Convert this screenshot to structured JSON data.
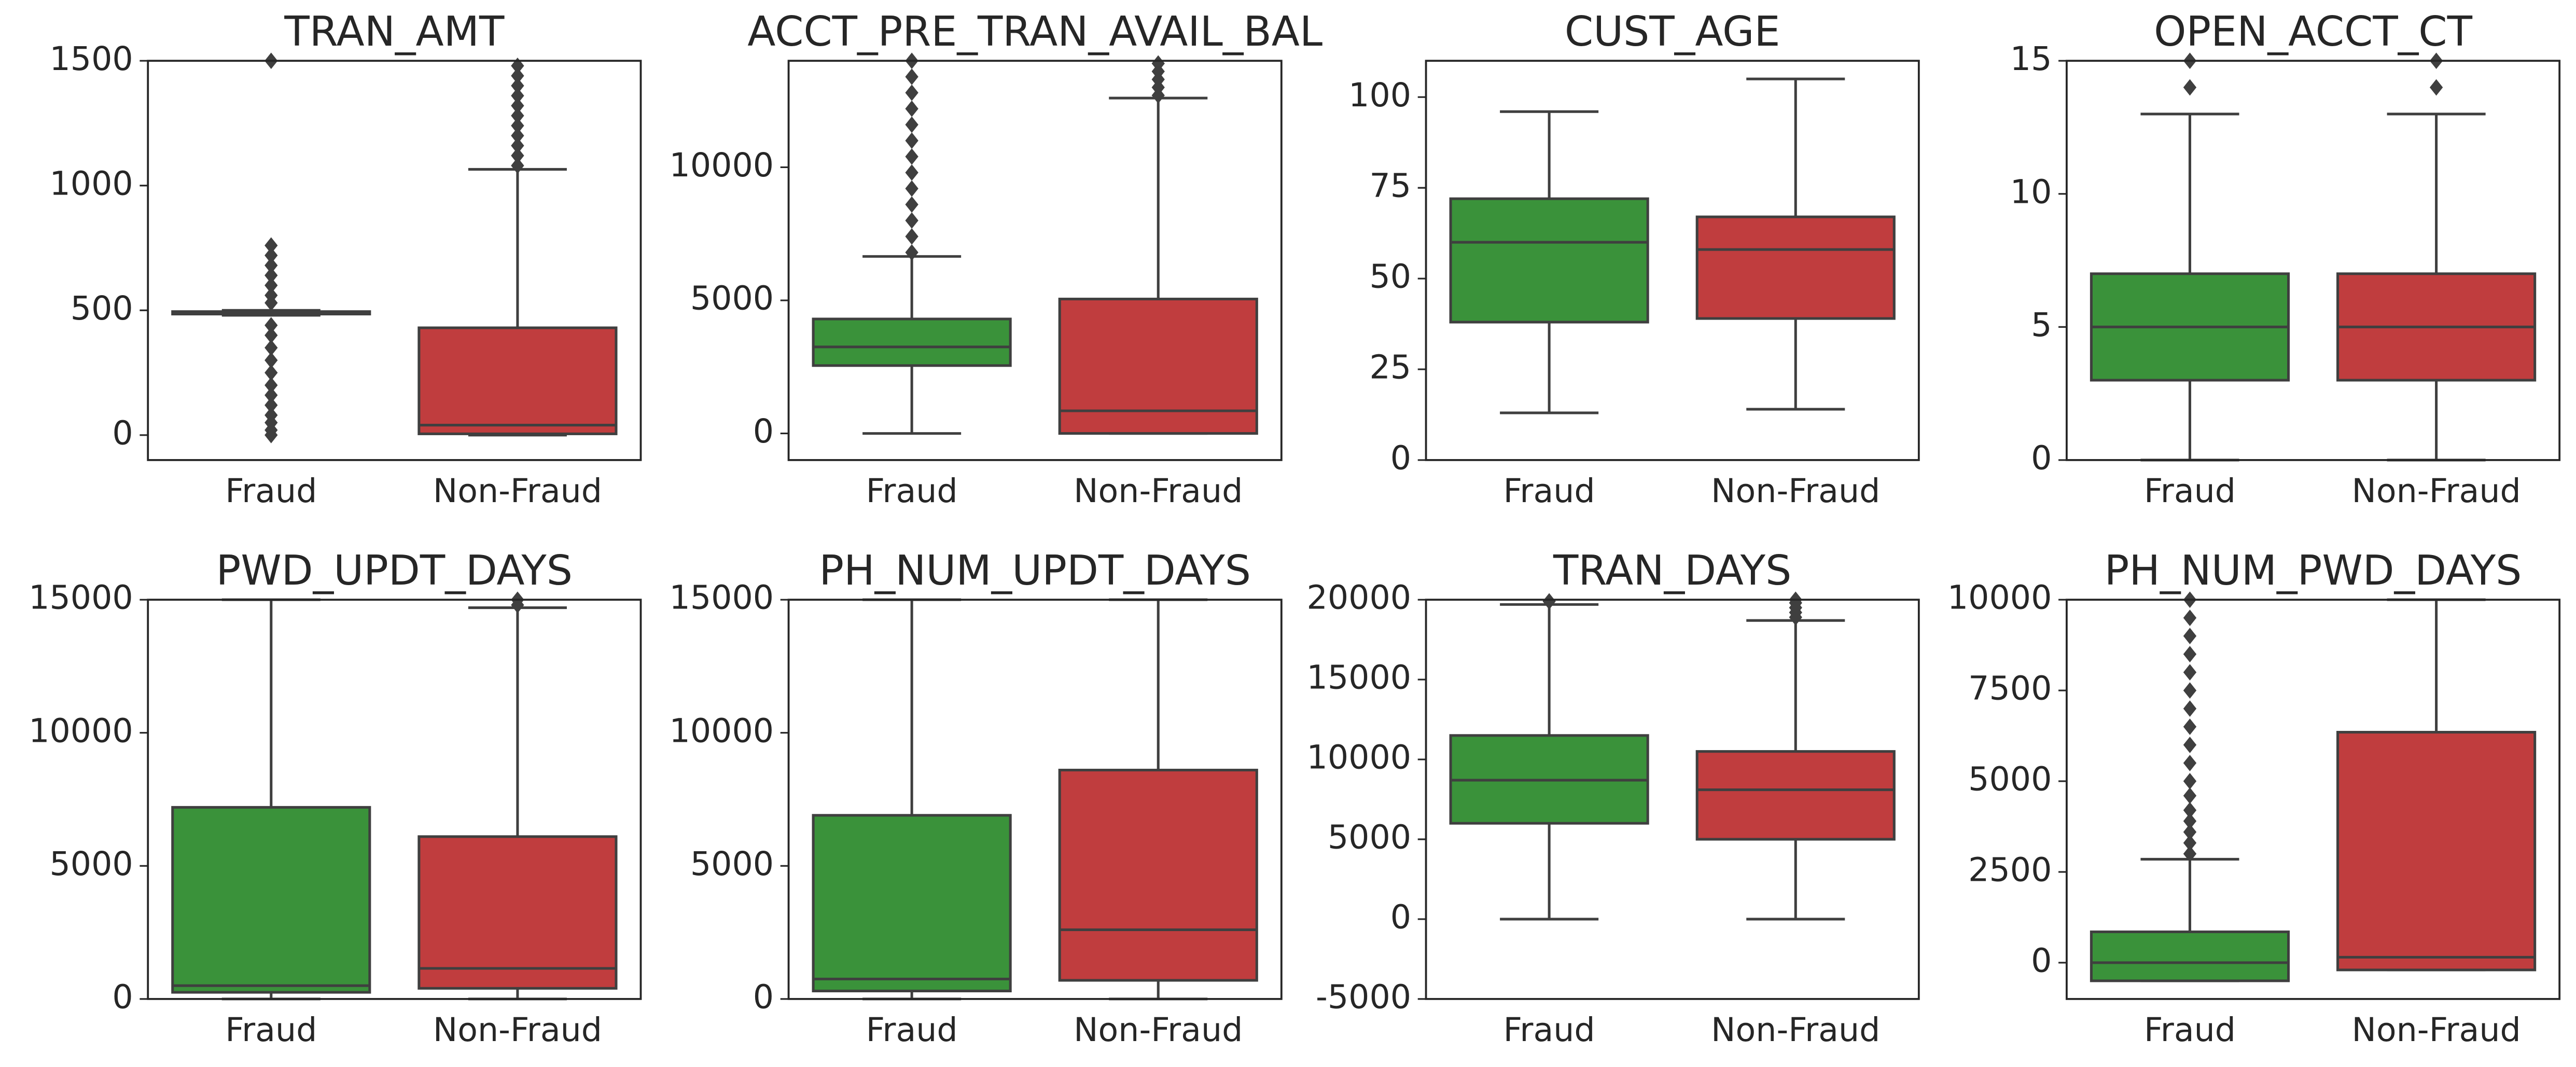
{
  "chart_data": [
    {
      "type": "box",
      "title": "TRAN_AMT",
      "categories": [
        "Fraud",
        "Non-Fraud"
      ],
      "colors": [
        "#3a923a",
        "#c03d3e"
      ],
      "ylim": [
        -100,
        1500
      ],
      "yticks": [
        0,
        500,
        1000,
        1500
      ],
      "boxes": [
        {
          "whislo": 480,
          "q1": 485,
          "med": 490,
          "q3": 495,
          "whishi": 500,
          "fliers": [
            0,
            20,
            50,
            80,
            120,
            160,
            200,
            250,
            300,
            350,
            400,
            440,
            530,
            560,
            600,
            640,
            680,
            720,
            760,
            1500
          ]
        },
        {
          "whislo": 0,
          "q1": 5,
          "med": 40,
          "q3": 430,
          "whishi": 1065,
          "fliers": [
            1080,
            1120,
            1160,
            1200,
            1240,
            1280,
            1320,
            1360,
            1400,
            1440,
            1480
          ]
        }
      ]
    },
    {
      "type": "box",
      "title": "ACCT_PRE_TRAN_AVAIL_BAL",
      "categories": [
        "Fraud",
        "Non-Fraud"
      ],
      "colors": [
        "#3a923a",
        "#c03d3e"
      ],
      "ylim": [
        -1000,
        14000
      ],
      "yticks": [
        0,
        5000,
        10000
      ],
      "boxes": [
        {
          "whislo": 0,
          "q1": 2550,
          "med": 3250,
          "q3": 4300,
          "whishi": 6650,
          "fliers": [
            6800,
            7400,
            8000,
            8600,
            9200,
            9800,
            10400,
            11000,
            11600,
            12200,
            12800,
            13400,
            14000
          ]
        },
        {
          "whislo": 0,
          "q1": 0,
          "med": 850,
          "q3": 5050,
          "whishi": 12600,
          "fliers": [
            12700,
            13000,
            13300,
            13600,
            13900
          ]
        }
      ]
    },
    {
      "type": "box",
      "title": "CUST_AGE",
      "categories": [
        "Fraud",
        "Non-Fraud"
      ],
      "colors": [
        "#3a923a",
        "#c03d3e"
      ],
      "ylim": [
        0,
        110
      ],
      "yticks": [
        0,
        25,
        50,
        75,
        100
      ],
      "boxes": [
        {
          "whislo": 13,
          "q1": 38,
          "med": 60,
          "q3": 72,
          "whishi": 96
        },
        {
          "whislo": 14,
          "q1": 39,
          "med": 58,
          "q3": 67,
          "whishi": 105
        }
      ]
    },
    {
      "type": "box",
      "title": "OPEN_ACCT_CT",
      "categories": [
        "Fraud",
        "Non-Fraud"
      ],
      "colors": [
        "#3a923a",
        "#c03d3e"
      ],
      "ylim": [
        0,
        15
      ],
      "yticks": [
        0,
        5,
        10,
        15
      ],
      "boxes": [
        {
          "whislo": 0,
          "q1": 3,
          "med": 5,
          "q3": 7,
          "whishi": 13,
          "fliers": [
            14,
            15
          ]
        },
        {
          "whislo": 0,
          "q1": 3,
          "med": 5,
          "q3": 7,
          "whishi": 13,
          "fliers": [
            14,
            15
          ]
        }
      ]
    },
    {
      "type": "box",
      "title": "PWD_UPDT_DAYS",
      "categories": [
        "Fraud",
        "Non-Fraud"
      ],
      "colors": [
        "#3a923a",
        "#c03d3e"
      ],
      "ylim": [
        0,
        15000
      ],
      "yticks": [
        0,
        5000,
        10000,
        15000
      ],
      "boxes": [
        {
          "whislo": 0,
          "q1": 250,
          "med": 500,
          "q3": 7200,
          "whishi": 15000
        },
        {
          "whislo": 0,
          "q1": 400,
          "med": 1150,
          "q3": 6100,
          "whishi": 14700,
          "fliers": [
            14800,
            15000
          ]
        }
      ]
    },
    {
      "type": "box",
      "title": "PH_NUM_UPDT_DAYS",
      "categories": [
        "Fraud",
        "Non-Fraud"
      ],
      "colors": [
        "#3a923a",
        "#c03d3e"
      ],
      "ylim": [
        0,
        15000
      ],
      "yticks": [
        0,
        5000,
        10000,
        15000
      ],
      "boxes": [
        {
          "whislo": 0,
          "q1": 300,
          "med": 750,
          "q3": 6900,
          "whishi": 15000
        },
        {
          "whislo": 0,
          "q1": 700,
          "med": 2600,
          "q3": 8600,
          "whishi": 15000
        }
      ]
    },
    {
      "type": "box",
      "title": "TRAN_DAYS",
      "categories": [
        "Fraud",
        "Non-Fraud"
      ],
      "colors": [
        "#3a923a",
        "#c03d3e"
      ],
      "ylim": [
        -5000,
        20000
      ],
      "yticks": [
        -5000,
        0,
        5000,
        10000,
        15000,
        20000
      ],
      "boxes": [
        {
          "whislo": 0,
          "q1": 6000,
          "med": 8700,
          "q3": 11500,
          "whishi": 19700,
          "fliers": [
            19900
          ]
        },
        {
          "whislo": 0,
          "q1": 5000,
          "med": 8100,
          "q3": 10500,
          "whishi": 18700,
          "fliers": [
            18900,
            19200,
            19500,
            19800,
            20000
          ]
        }
      ]
    },
    {
      "type": "box",
      "title": "PH_NUM_PWD_DAYS",
      "categories": [
        "Fraud",
        "Non-Fraud"
      ],
      "colors": [
        "#3a923a",
        "#c03d3e"
      ],
      "ylim": [
        -1000,
        10000
      ],
      "yticks": [
        0,
        2500,
        5000,
        7500,
        10000
      ],
      "boxes": [
        {
          "whislo": -500,
          "q1": -500,
          "med": 0,
          "q3": 850,
          "whishi": 2850,
          "fliers": [
            3000,
            3300,
            3600,
            3900,
            4200,
            4600,
            5000,
            5500,
            6000,
            6500,
            7000,
            7500,
            8000,
            8500,
            9000,
            9500,
            10000
          ]
        },
        {
          "whislo": -200,
          "q1": -200,
          "med": 150,
          "q3": 6350,
          "whishi": 10000
        }
      ]
    }
  ]
}
